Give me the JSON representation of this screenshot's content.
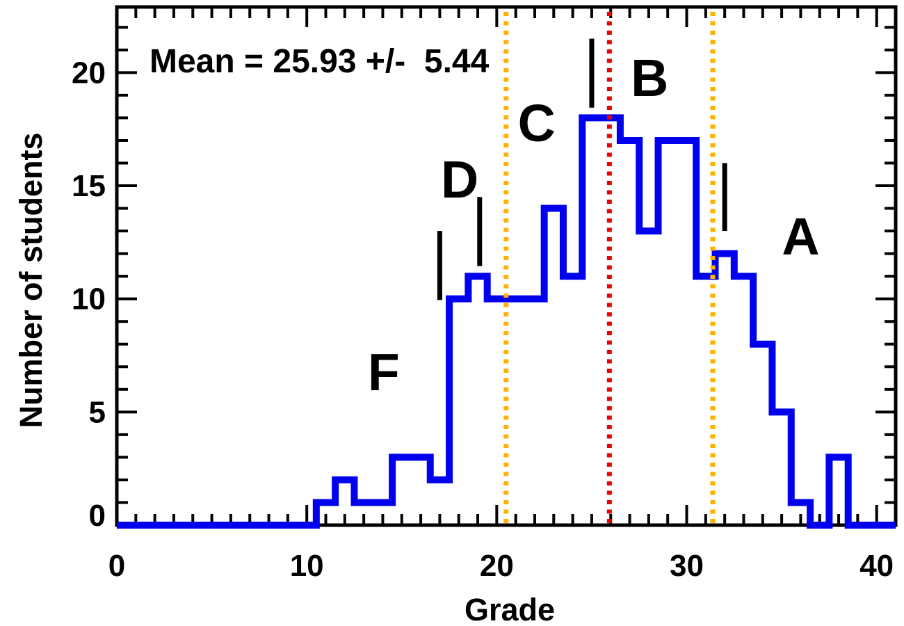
{
  "chart_data": {
    "type": "bar",
    "subtype": "step-histogram",
    "annotation": "Mean = 25.93 +/-  5.44",
    "xlabel": "Grade",
    "ylabel": "Number of students",
    "xlim": [
      0,
      41
    ],
    "ylim": [
      0,
      22.9
    ],
    "grid": false,
    "legend": "none",
    "x_major_ticks": [
      0,
      10,
      20,
      30,
      40
    ],
    "x_tick_labels": [
      "0",
      "10",
      "20",
      "30",
      "40"
    ],
    "y_major_ticks": [
      0,
      5,
      10,
      15,
      20
    ],
    "y_tick_labels": [
      "0",
      "5",
      "10",
      "15",
      "20"
    ],
    "x_minor_step": 1,
    "y_minor_step": 1,
    "bin_edges": [
      0,
      10.5,
      11.5,
      12.5,
      13.5,
      14.5,
      15.5,
      16.5,
      17.5,
      18.5,
      19.5,
      20.5,
      21.5,
      22.5,
      23.5,
      24.5,
      25.5,
      26.5,
      27.5,
      28.5,
      29.5,
      30.5,
      31.5,
      32.5,
      33.5,
      34.5,
      35.5,
      36.5,
      37.5,
      38.5,
      41
    ],
    "counts": [
      0,
      1,
      2,
      1,
      1,
      3,
      3,
      2,
      10,
      11,
      10,
      10,
      10,
      14,
      11,
      18,
      18,
      17,
      13,
      17,
      17,
      11,
      12,
      11,
      8,
      5,
      1,
      0,
      3,
      0
    ],
    "mean": 25.93,
    "std_dev": 5.44,
    "colors": {
      "histogram": "#0000ee",
      "mean_line": "#ee0000",
      "sigma_line": "#ffb000",
      "axis": "#000000"
    },
    "mean_line": {
      "x": 25.93
    },
    "sigma_lines": {
      "xs": [
        20.49,
        31.37
      ]
    },
    "grade_labels": [
      {
        "label": "F",
        "x": 14.05,
        "y": 6.8
      },
      {
        "label": "D",
        "x": 18.05,
        "y": 15.3
      },
      {
        "label": "C",
        "x": 22.1,
        "y": 17.8
      },
      {
        "label": "B",
        "x": 28.05,
        "y": 19.8
      },
      {
        "label": "A",
        "x": 36.0,
        "y": 12.8
      }
    ],
    "boundary_markers": [
      {
        "x": 17.0,
        "y1": 9.95,
        "y2": 13.0
      },
      {
        "x": 19.1,
        "y1": 11.45,
        "y2": 14.5
      },
      {
        "x": 25.0,
        "y1": 18.45,
        "y2": 21.5
      },
      {
        "x": 32.0,
        "y1": 13.0,
        "y2": 16.0
      }
    ]
  }
}
